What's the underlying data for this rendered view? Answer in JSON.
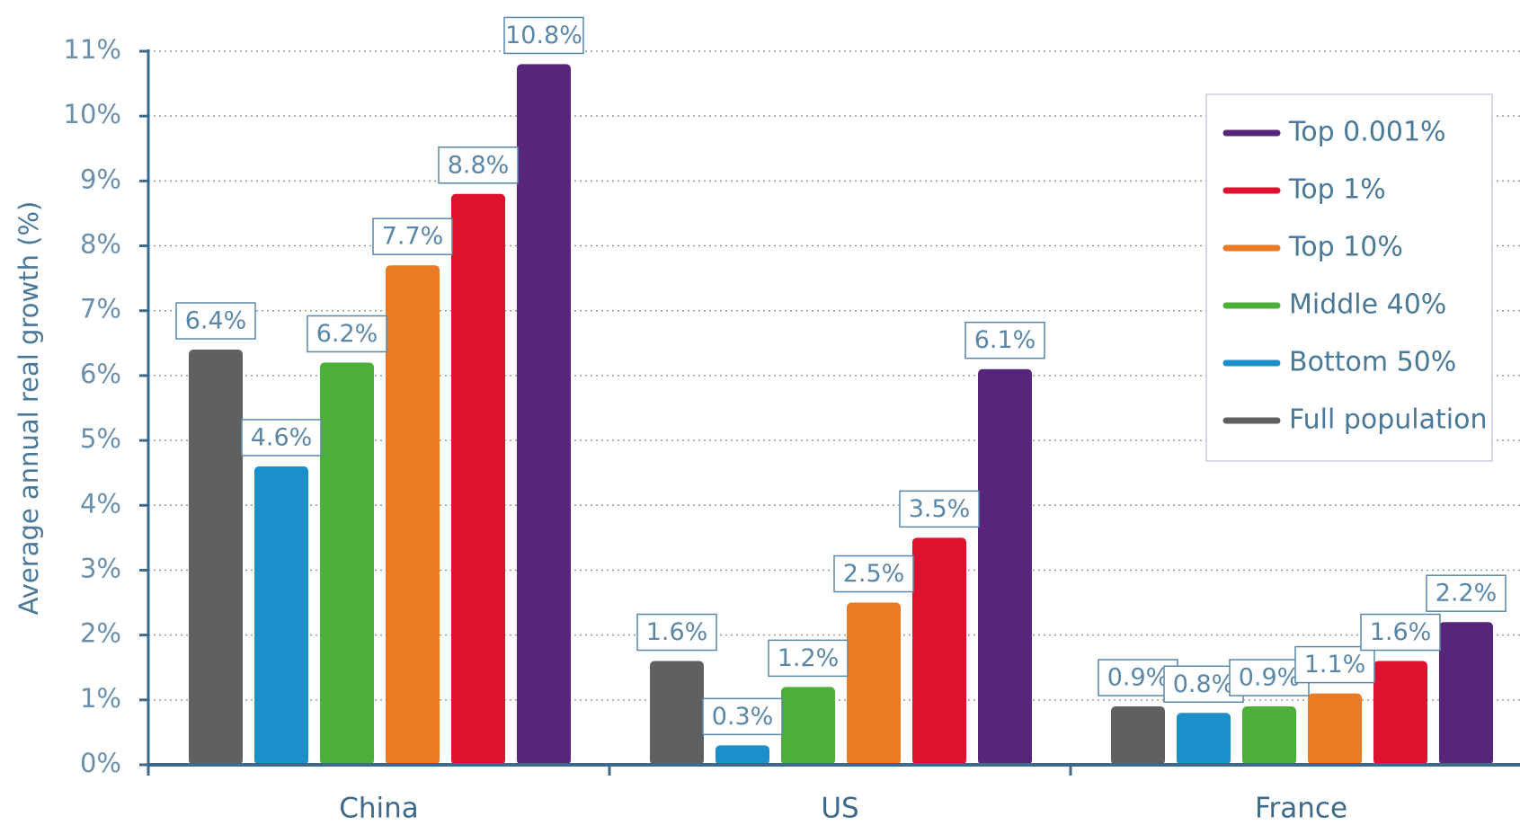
{
  "chart_data": {
    "type": "bar",
    "y_label": "Average annual real growth (%)",
    "categories": [
      "China",
      "US",
      "France"
    ],
    "series": [
      {
        "name": "Full population",
        "color": "#606060",
        "values": [
          6.4,
          1.6,
          0.9
        ],
        "value_labels": [
          "6.4%",
          "1.6%",
          "0.9%"
        ]
      },
      {
        "name": "Bottom 50%",
        "color": "#1a8fc9",
        "values": [
          4.6,
          0.3,
          0.8
        ],
        "value_labels": [
          "4.6%",
          "0.3%",
          "0.8%"
        ]
      },
      {
        "name": "Middle 40%",
        "color": "#4caf3a",
        "values": [
          6.2,
          1.2,
          0.9
        ],
        "value_labels": [
          "6.2%",
          "1.2%",
          "0.9%"
        ]
      },
      {
        "name": "Top 10%",
        "color": "#ea7a24",
        "values": [
          7.7,
          2.5,
          1.1
        ],
        "value_labels": [
          "7.7%",
          "2.5%",
          "1.1%"
        ]
      },
      {
        "name": "Top 1%",
        "color": "#e0112f",
        "values": [
          8.8,
          3.5,
          1.6
        ],
        "value_labels": [
          "8.8%",
          "3.5%",
          "1.6%"
        ]
      },
      {
        "name": "Top 0.001%",
        "color": "#57257a",
        "values": [
          10.8,
          6.1,
          2.2
        ],
        "value_labels": [
          "10.8%",
          "6.1%",
          "2.2%"
        ]
      }
    ],
    "ylim": [
      0,
      11
    ],
    "yticks": [
      {
        "value": 0,
        "label": "0%"
      },
      {
        "value": 1,
        "label": "1%"
      },
      {
        "value": 2,
        "label": "2%"
      },
      {
        "value": 3,
        "label": "3%"
      },
      {
        "value": 4,
        "label": "4%"
      },
      {
        "value": 5,
        "label": "5%"
      },
      {
        "value": 6,
        "label": "6%"
      },
      {
        "value": 7,
        "label": "7%"
      },
      {
        "value": 8,
        "label": "8%"
      },
      {
        "value": 9,
        "label": "9%"
      },
      {
        "value": 10,
        "label": "10%"
      },
      {
        "value": 11,
        "label": "11%"
      }
    ],
    "grid": true,
    "legend": "upper right"
  }
}
